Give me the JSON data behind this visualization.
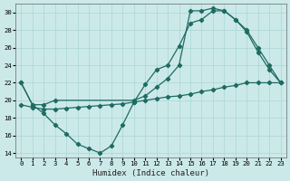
{
  "xlabel": "Humidex (Indice chaleur)",
  "ylabel": "",
  "xlim": [
    -0.5,
    23.5
  ],
  "ylim": [
    13.5,
    31
  ],
  "yticks": [
    14,
    16,
    18,
    20,
    22,
    24,
    26,
    28,
    30
  ],
  "xticks": [
    0,
    1,
    2,
    3,
    4,
    5,
    6,
    7,
    8,
    9,
    10,
    11,
    12,
    13,
    14,
    15,
    16,
    17,
    18,
    19,
    20,
    21,
    22,
    23
  ],
  "bg_color": "#cce9e9",
  "line_color": "#1e6b62",
  "grid_color": "#aad4d4",
  "curve1_x": [
    0,
    1,
    2,
    3,
    4,
    5,
    6,
    7,
    8,
    9,
    10,
    11,
    12,
    13,
    14,
    15,
    16,
    17,
    18,
    19,
    20,
    21,
    22,
    23
  ],
  "curve1_y": [
    22.0,
    19.5,
    18.5,
    17.2,
    16.2,
    15.0,
    14.5,
    14.0,
    14.8,
    17.2,
    19.8,
    21.8,
    23.5,
    24.0,
    26.2,
    28.8,
    29.2,
    30.2,
    30.2,
    29.2,
    27.8,
    25.5,
    23.5,
    22.0
  ],
  "curve2_x": [
    0,
    1,
    2,
    3,
    10,
    11,
    12,
    13,
    14,
    15,
    16,
    17,
    18,
    19,
    20,
    21,
    22,
    23
  ],
  "curve2_y": [
    22.0,
    19.5,
    19.5,
    20.0,
    20.0,
    20.5,
    21.5,
    22.5,
    24.0,
    30.2,
    30.2,
    30.5,
    30.2,
    29.2,
    28.0,
    26.0,
    24.0,
    22.0
  ],
  "curve3_x": [
    0,
    1,
    2,
    3,
    4,
    5,
    6,
    7,
    8,
    9,
    10,
    11,
    12,
    13,
    14,
    15,
    16,
    17,
    18,
    19,
    20,
    21,
    22,
    23
  ],
  "curve3_y": [
    19.5,
    19.2,
    19.0,
    19.0,
    19.1,
    19.2,
    19.3,
    19.4,
    19.5,
    19.6,
    19.8,
    20.0,
    20.2,
    20.4,
    20.5,
    20.7,
    21.0,
    21.2,
    21.5,
    21.7,
    22.0,
    22.0,
    22.0,
    22.0
  ]
}
